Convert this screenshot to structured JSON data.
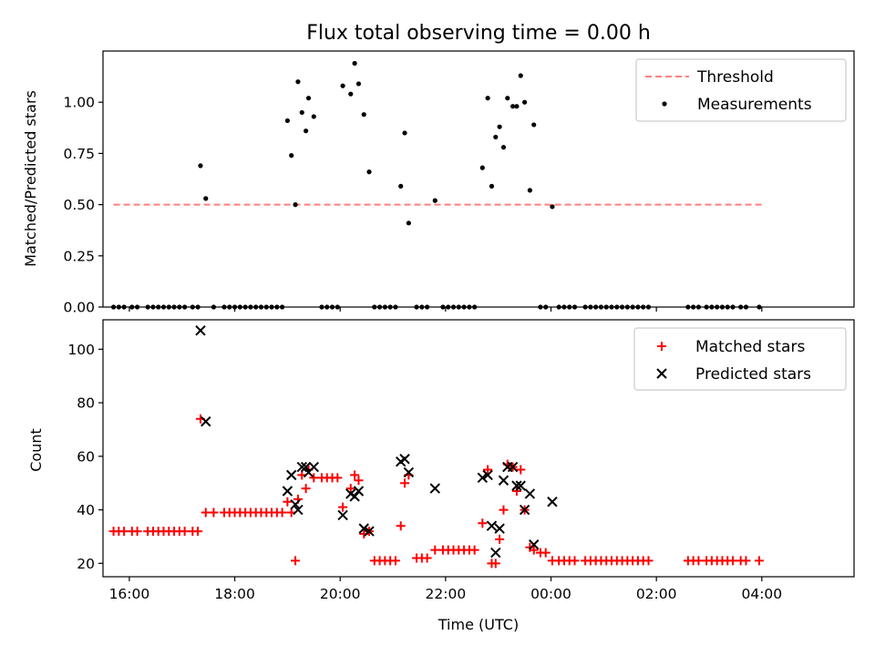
{
  "chart_data": [
    {
      "type": "scatter",
      "title": "Flux total observing time = 0.00 h",
      "xlabel": "",
      "ylabel": "Matched/Predicted stars",
      "xlim": [
        -1.0,
        27.5
      ],
      "ylim": [
        0.0,
        1.25
      ],
      "yticks": [
        0.0,
        0.25,
        0.5,
        0.75,
        1.0
      ],
      "ytick_labels": [
        "0.00",
        "0.25",
        "0.50",
        "0.75",
        "1.00"
      ],
      "xticks": [
        0,
        4,
        8,
        12,
        16,
        20,
        24
      ],
      "xtick_labels": [
        "",
        "",
        "",
        "",
        "",
        "",
        ""
      ],
      "legend_position": "top-right",
      "threshold": {
        "name": "Threshold",
        "value": 0.5,
        "x_range": [
          -0.6,
          24.0
        ],
        "color": "#ff7f7f",
        "style": "dashed"
      },
      "series": [
        {
          "name": "Measurements",
          "marker": "dot",
          "color": "#000000",
          "points": [
            [
              -0.6,
              0
            ],
            [
              -0.4,
              0
            ],
            [
              -0.2,
              0
            ],
            [
              0.1,
              0
            ],
            [
              0.3,
              0
            ],
            [
              0.7,
              0
            ],
            [
              0.9,
              0
            ],
            [
              1.1,
              0
            ],
            [
              1.3,
              0
            ],
            [
              1.5,
              0
            ],
            [
              1.7,
              0
            ],
            [
              1.9,
              0
            ],
            [
              2.1,
              0
            ],
            [
              2.4,
              0
            ],
            [
              2.6,
              0
            ],
            [
              2.7,
              0.69
            ],
            [
              2.9,
              0.53
            ],
            [
              3.2,
              0
            ],
            [
              3.6,
              0
            ],
            [
              3.8,
              0
            ],
            [
              4.0,
              0
            ],
            [
              4.2,
              0
            ],
            [
              4.4,
              0
            ],
            [
              4.6,
              0
            ],
            [
              4.8,
              0
            ],
            [
              5.0,
              0
            ],
            [
              5.2,
              0
            ],
            [
              5.4,
              0
            ],
            [
              5.6,
              0
            ],
            [
              5.8,
              0
            ],
            [
              6.0,
              0.91
            ],
            [
              6.15,
              0.74
            ],
            [
              6.3,
              0.5
            ],
            [
              6.4,
              1.1
            ],
            [
              6.55,
              0.95
            ],
            [
              6.7,
              0.86
            ],
            [
              6.8,
              1.02
            ],
            [
              7.0,
              0.93
            ],
            [
              7.3,
              0
            ],
            [
              7.5,
              0
            ],
            [
              7.7,
              0
            ],
            [
              7.9,
              0
            ],
            [
              8.1,
              1.08
            ],
            [
              8.4,
              1.04
            ],
            [
              8.55,
              1.19
            ],
            [
              8.7,
              1.09
            ],
            [
              8.9,
              0.94
            ],
            [
              9.1,
              0.66
            ],
            [
              9.3,
              0
            ],
            [
              9.5,
              0
            ],
            [
              9.7,
              0
            ],
            [
              9.9,
              0
            ],
            [
              10.1,
              0
            ],
            [
              10.3,
              0.59
            ],
            [
              10.45,
              0.85
            ],
            [
              10.6,
              0.41
            ],
            [
              10.9,
              0
            ],
            [
              11.1,
              0
            ],
            [
              11.3,
              0
            ],
            [
              11.6,
              0.52
            ],
            [
              11.9,
              0
            ],
            [
              12.1,
              0
            ],
            [
              12.3,
              0
            ],
            [
              12.5,
              0
            ],
            [
              12.7,
              0
            ],
            [
              12.9,
              0
            ],
            [
              13.1,
              0
            ],
            [
              13.4,
              0.68
            ],
            [
              13.6,
              1.02
            ],
            [
              13.75,
              0.59
            ],
            [
              13.9,
              0.83
            ],
            [
              14.05,
              0.88
            ],
            [
              14.2,
              0.78
            ],
            [
              14.35,
              1.02
            ],
            [
              14.55,
              0.98
            ],
            [
              14.7,
              0.98
            ],
            [
              14.85,
              1.13
            ],
            [
              15.0,
              1.0
            ],
            [
              15.2,
              0.57
            ],
            [
              15.35,
              0.89
            ],
            [
              15.6,
              0
            ],
            [
              15.8,
              0
            ],
            [
              16.05,
              0.49
            ],
            [
              16.3,
              0
            ],
            [
              16.5,
              0
            ],
            [
              16.7,
              0
            ],
            [
              16.9,
              0
            ],
            [
              17.3,
              0
            ],
            [
              17.5,
              0
            ],
            [
              17.7,
              0
            ],
            [
              17.9,
              0
            ],
            [
              18.1,
              0
            ],
            [
              18.3,
              0
            ],
            [
              18.5,
              0
            ],
            [
              18.7,
              0
            ],
            [
              18.9,
              0
            ],
            [
              19.1,
              0
            ],
            [
              19.3,
              0
            ],
            [
              19.5,
              0
            ],
            [
              19.7,
              0
            ],
            [
              21.2,
              0
            ],
            [
              21.4,
              0
            ],
            [
              21.6,
              0
            ],
            [
              21.9,
              0
            ],
            [
              22.1,
              0
            ],
            [
              22.3,
              0
            ],
            [
              22.5,
              0
            ],
            [
              22.7,
              0
            ],
            [
              22.9,
              0
            ],
            [
              23.2,
              0
            ],
            [
              23.4,
              0
            ],
            [
              23.9,
              0
            ]
          ]
        }
      ]
    },
    {
      "type": "scatter",
      "title": "",
      "xlabel": "Time (UTC)",
      "ylabel": "Count",
      "xlim": [
        -1.0,
        27.5
      ],
      "ylim": [
        15,
        111
      ],
      "yticks": [
        20,
        40,
        60,
        80,
        100
      ],
      "ytick_labels": [
        "20",
        "40",
        "60",
        "80",
        "100"
      ],
      "xticks": [
        0,
        4,
        8,
        12,
        16,
        20,
        24
      ],
      "xtick_labels": [
        "16:00",
        "18:00",
        "20:00",
        "22:00",
        "00:00",
        "02:00",
        "04:00"
      ],
      "legend_position": "top-right",
      "series": [
        {
          "name": "Matched stars",
          "marker": "plus",
          "color": "#ff0000",
          "points": [
            [
              -0.6,
              32
            ],
            [
              -0.4,
              32
            ],
            [
              -0.2,
              32
            ],
            [
              0.1,
              32
            ],
            [
              0.3,
              32
            ],
            [
              0.7,
              32
            ],
            [
              0.9,
              32
            ],
            [
              1.1,
              32
            ],
            [
              1.3,
              32
            ],
            [
              1.5,
              32
            ],
            [
              1.7,
              32
            ],
            [
              1.9,
              32
            ],
            [
              2.1,
              32
            ],
            [
              2.4,
              32
            ],
            [
              2.6,
              32
            ],
            [
              2.7,
              74
            ],
            [
              2.9,
              39
            ],
            [
              3.2,
              39
            ],
            [
              3.6,
              39
            ],
            [
              3.8,
              39
            ],
            [
              4.0,
              39
            ],
            [
              4.2,
              39
            ],
            [
              4.4,
              39
            ],
            [
              4.6,
              39
            ],
            [
              4.8,
              39
            ],
            [
              5.0,
              39
            ],
            [
              5.2,
              39
            ],
            [
              5.4,
              39
            ],
            [
              5.6,
              39
            ],
            [
              5.8,
              39
            ],
            [
              6.0,
              43
            ],
            [
              6.15,
              39
            ],
            [
              6.3,
              21
            ],
            [
              6.4,
              44
            ],
            [
              6.55,
              53
            ],
            [
              6.7,
              48
            ],
            [
              6.8,
              55
            ],
            [
              7.0,
              52
            ],
            [
              7.3,
              52
            ],
            [
              7.5,
              52
            ],
            [
              7.7,
              52
            ],
            [
              7.9,
              52
            ],
            [
              8.1,
              41
            ],
            [
              8.4,
              48
            ],
            [
              8.55,
              53
            ],
            [
              8.7,
              51
            ],
            [
              8.9,
              31
            ],
            [
              9.1,
              32
            ],
            [
              9.3,
              21
            ],
            [
              9.5,
              21
            ],
            [
              9.7,
              21
            ],
            [
              9.9,
              21
            ],
            [
              10.1,
              21
            ],
            [
              10.3,
              34
            ],
            [
              10.45,
              50
            ],
            [
              10.6,
              53
            ],
            [
              10.9,
              22
            ],
            [
              11.1,
              22
            ],
            [
              11.3,
              22
            ],
            [
              11.6,
              25
            ],
            [
              11.9,
              25
            ],
            [
              12.1,
              25
            ],
            [
              12.3,
              25
            ],
            [
              12.5,
              25
            ],
            [
              12.7,
              25
            ],
            [
              12.9,
              25
            ],
            [
              13.1,
              25
            ],
            [
              13.4,
              35
            ],
            [
              13.6,
              55
            ],
            [
              13.75,
              20
            ],
            [
              13.9,
              20
            ],
            [
              14.05,
              29
            ],
            [
              14.2,
              40
            ],
            [
              14.35,
              57
            ],
            [
              14.55,
              56
            ],
            [
              14.7,
              47
            ],
            [
              14.85,
              55
            ],
            [
              15.0,
              40
            ],
            [
              15.2,
              26
            ],
            [
              15.35,
              25
            ],
            [
              15.6,
              24
            ],
            [
              15.8,
              24
            ],
            [
              16.05,
              21
            ],
            [
              16.3,
              21
            ],
            [
              16.5,
              21
            ],
            [
              16.7,
              21
            ],
            [
              16.9,
              21
            ],
            [
              17.3,
              21
            ],
            [
              17.5,
              21
            ],
            [
              17.7,
              21
            ],
            [
              17.9,
              21
            ],
            [
              18.1,
              21
            ],
            [
              18.3,
              21
            ],
            [
              18.5,
              21
            ],
            [
              18.7,
              21
            ],
            [
              18.9,
              21
            ],
            [
              19.1,
              21
            ],
            [
              19.3,
              21
            ],
            [
              19.5,
              21
            ],
            [
              19.7,
              21
            ],
            [
              21.2,
              21
            ],
            [
              21.4,
              21
            ],
            [
              21.6,
              21
            ],
            [
              21.9,
              21
            ],
            [
              22.1,
              21
            ],
            [
              22.3,
              21
            ],
            [
              22.5,
              21
            ],
            [
              22.7,
              21
            ],
            [
              22.9,
              21
            ],
            [
              23.2,
              21
            ],
            [
              23.4,
              21
            ],
            [
              23.9,
              21
            ]
          ]
        },
        {
          "name": "Predicted stars",
          "marker": "x",
          "color": "#000000",
          "points": [
            [
              2.7,
              107
            ],
            [
              2.9,
              73
            ],
            [
              6.0,
              47
            ],
            [
              6.15,
              53
            ],
            [
              6.3,
              42
            ],
            [
              6.4,
              40
            ],
            [
              6.55,
              56
            ],
            [
              6.7,
              56
            ],
            [
              6.8,
              54
            ],
            [
              7.0,
              56
            ],
            [
              8.1,
              38
            ],
            [
              8.4,
              46
            ],
            [
              8.55,
              45
            ],
            [
              8.7,
              47
            ],
            [
              8.9,
              33
            ],
            [
              9.1,
              32
            ],
            [
              10.3,
              58
            ],
            [
              10.45,
              59
            ],
            [
              10.6,
              54
            ],
            [
              11.6,
              48
            ],
            [
              13.4,
              52
            ],
            [
              13.6,
              53
            ],
            [
              13.75,
              34
            ],
            [
              13.9,
              24
            ],
            [
              14.05,
              33
            ],
            [
              14.2,
              51
            ],
            [
              14.35,
              56
            ],
            [
              14.55,
              56
            ],
            [
              14.7,
              49
            ],
            [
              14.85,
              49
            ],
            [
              15.0,
              40
            ],
            [
              15.2,
              46
            ],
            [
              15.35,
              27
            ],
            [
              16.05,
              43
            ]
          ]
        }
      ]
    }
  ]
}
